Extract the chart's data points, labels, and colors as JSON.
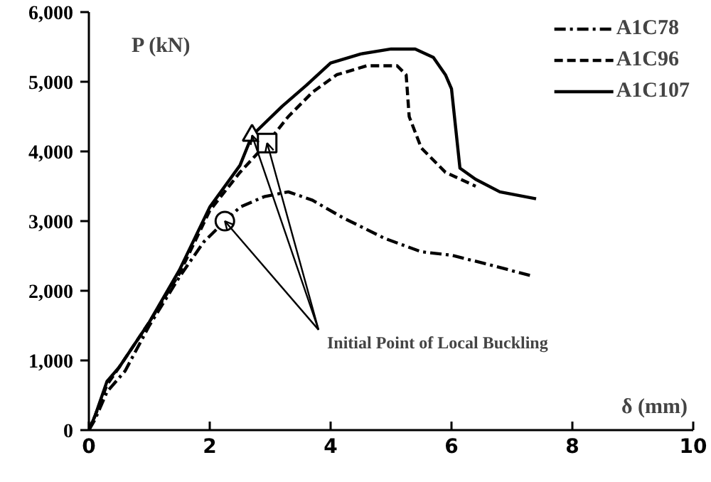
{
  "chart_data": {
    "type": "line",
    "xlabel": "δ (mm)",
    "ylabel": "P (kN)",
    "xlim": [
      0,
      10
    ],
    "ylim": [
      0,
      6000
    ],
    "xticks": [
      0,
      2,
      4,
      6,
      8,
      10
    ],
    "yticks": [
      {
        "value": 0,
        "label": "0"
      },
      {
        "value": 1000,
        "label": "1,000"
      },
      {
        "value": 2000,
        "label": "2,000"
      },
      {
        "value": 3000,
        "label": "3,000"
      },
      {
        "value": 4000,
        "label": "4,000"
      },
      {
        "value": 5000,
        "label": "5,000"
      },
      {
        "value": 6000,
        "label": "6,000"
      }
    ],
    "grid": false,
    "legend": "top right",
    "marker": "none",
    "series": [
      {
        "name": "A1C78",
        "color": "#000000",
        "line_style": "dashdot",
        "x": [
          0,
          0.1,
          0.3,
          0.6,
          1.0,
          1.5,
          1.9,
          2.25,
          2.5,
          2.9,
          3.3,
          3.7,
          4.2,
          4.9,
          5.5,
          6.0,
          6.6,
          7.3
        ],
        "values": [
          0,
          150,
          550,
          850,
          1500,
          2200,
          2700,
          3000,
          3200,
          3350,
          3420,
          3300,
          3050,
          2750,
          2560,
          2510,
          2380,
          2220
        ]
      },
      {
        "name": "A1C96",
        "color": "#000000",
        "line_style": "dashed",
        "x": [
          0,
          0.1,
          0.3,
          0.5,
          1.0,
          1.5,
          2.0,
          2.5,
          2.95,
          3.3,
          3.7,
          4.1,
          4.6,
          5.1,
          5.25,
          5.3,
          5.5,
          5.9,
          6.4
        ],
        "values": [
          0,
          200,
          650,
          900,
          1550,
          2250,
          3150,
          3700,
          4120,
          4500,
          4850,
          5100,
          5230,
          5230,
          5100,
          4500,
          4050,
          3700,
          3500
        ]
      },
      {
        "name": "A1C107",
        "color": "#000000",
        "line_style": "solid",
        "x": [
          0,
          0.1,
          0.3,
          0.5,
          1.0,
          1.5,
          2.0,
          2.5,
          2.7,
          3.2,
          3.6,
          4.0,
          4.5,
          5.0,
          5.4,
          5.7,
          5.9,
          6.0,
          6.14,
          6.4,
          6.8,
          7.4
        ],
        "values": [
          0,
          200,
          700,
          900,
          1550,
          2300,
          3200,
          3800,
          4230,
          4650,
          4950,
          5270,
          5400,
          5470,
          5470,
          5350,
          5100,
          4900,
          3760,
          3600,
          3420,
          3320
        ]
      },
      {
        "type": "scatter",
        "marker": "circle",
        "color": "#000000",
        "x": [
          2.25
        ],
        "values": [
          3000
        ]
      },
      {
        "type": "scatter",
        "marker": "triangle",
        "color": "#000000",
        "x": [
          2.7
        ],
        "values": [
          4230
        ]
      },
      {
        "type": "scatter",
        "marker": "square",
        "color": "#000000",
        "x": [
          2.95
        ],
        "values": [
          4120
        ]
      }
    ],
    "annotations": [
      {
        "text": "Initial Point of Local Buckling",
        "x": 2.7,
        "y": 4230
      }
    ]
  }
}
